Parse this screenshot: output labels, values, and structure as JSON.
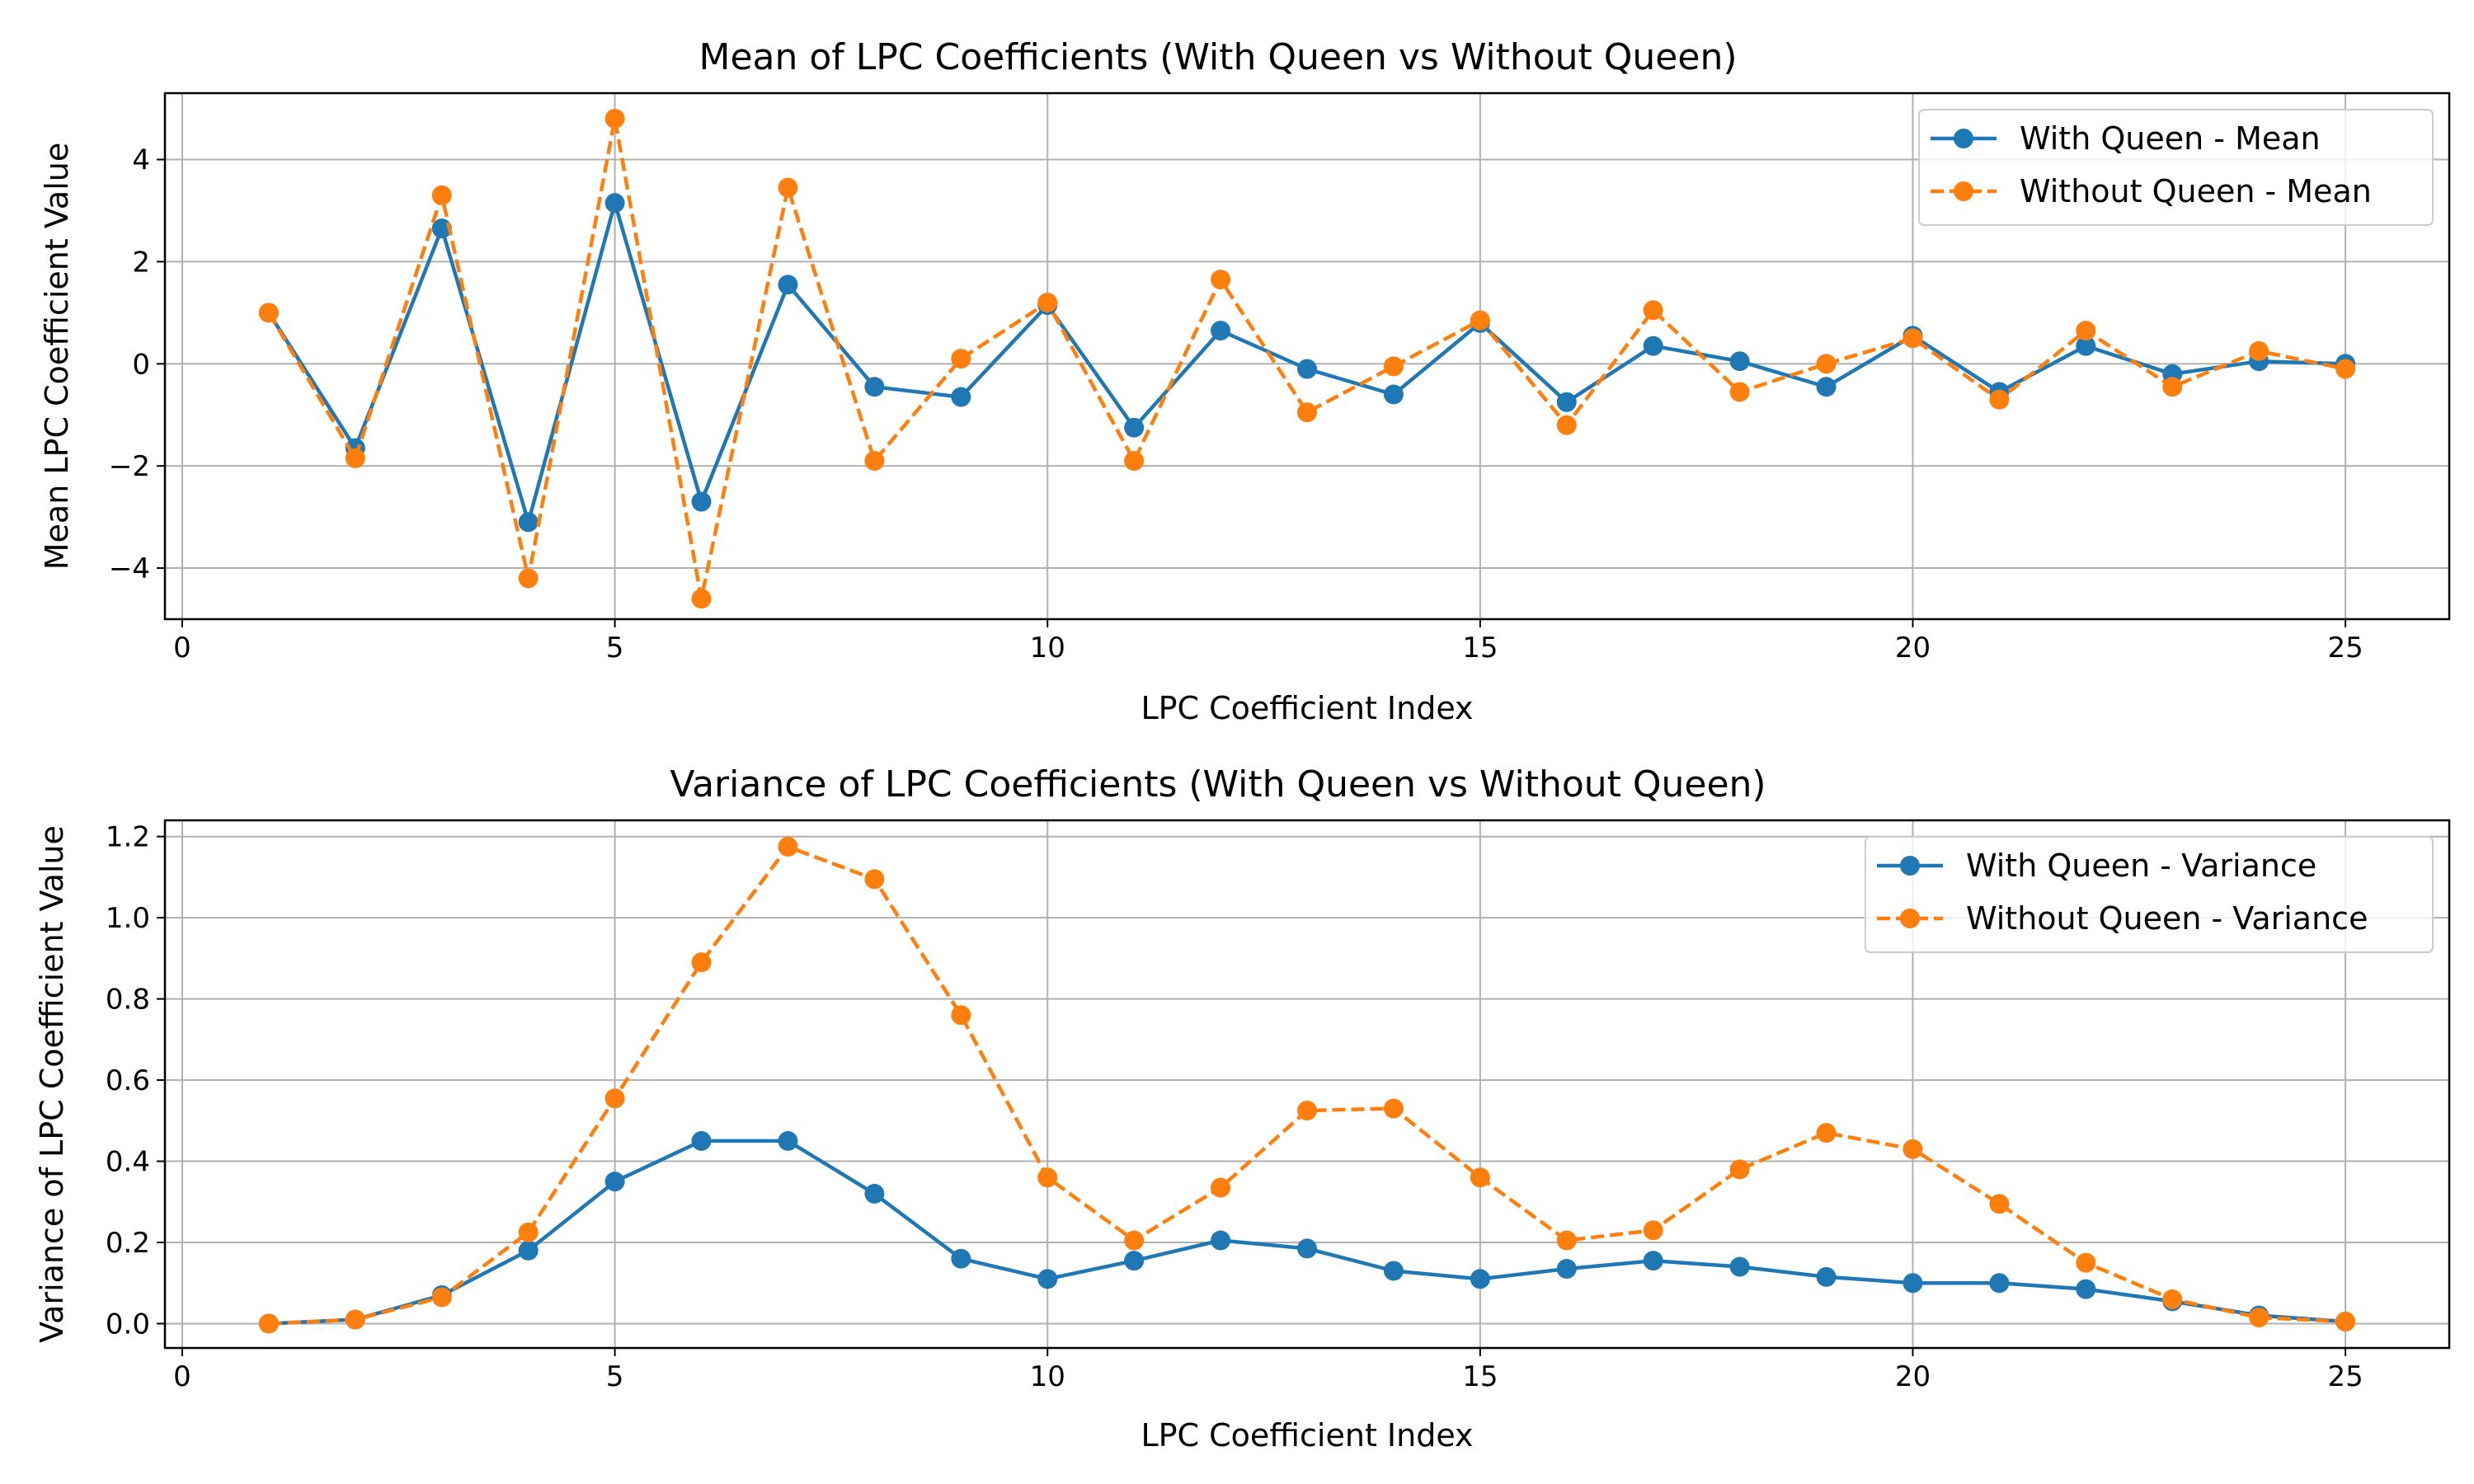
{
  "chart_data": [
    {
      "type": "line",
      "title": "Mean of LPC Coefficients (With Queen vs Without Queen)",
      "xlabel": "LPC Coefficient Index",
      "ylabel": "Mean LPC Coefficient Value",
      "xlim": [
        -0.2,
        26.2
      ],
      "ylim": [
        -5.0,
        5.3
      ],
      "xticks": [
        0,
        5,
        10,
        15,
        20,
        25
      ],
      "yticks": [
        -4,
        -2,
        0,
        2,
        4
      ],
      "ytick_labels": [
        "−4",
        "−2",
        "0",
        "2",
        "4"
      ],
      "grid": true,
      "legend_position": "upper right",
      "x": [
        1,
        2,
        3,
        4,
        5,
        6,
        7,
        8,
        9,
        10,
        11,
        12,
        13,
        14,
        15,
        16,
        17,
        18,
        19,
        20,
        21,
        22,
        23,
        24,
        25
      ],
      "series": [
        {
          "name": "With Queen - Mean",
          "color": "#1f77b4",
          "linestyle": "solid",
          "marker": "circle",
          "values": [
            1.0,
            -1.65,
            2.65,
            -3.1,
            3.15,
            -2.7,
            1.55,
            -0.45,
            -0.65,
            1.15,
            -1.25,
            0.65,
            -0.1,
            -0.6,
            0.8,
            -0.75,
            0.35,
            0.05,
            -0.45,
            0.55,
            -0.55,
            0.35,
            -0.2,
            0.05,
            0.0
          ]
        },
        {
          "name": "Without Queen - Mean",
          "color": "#ff7f0e",
          "linestyle": "dashed",
          "marker": "circle",
          "values": [
            1.0,
            -1.85,
            3.3,
            -4.2,
            4.8,
            -4.6,
            3.45,
            -1.9,
            0.1,
            1.2,
            -1.9,
            1.65,
            -0.95,
            -0.05,
            0.85,
            -1.2,
            1.05,
            -0.55,
            0.0,
            0.5,
            -0.7,
            0.65,
            -0.45,
            0.25,
            -0.1
          ]
        }
      ]
    },
    {
      "type": "line",
      "title": "Variance of LPC Coefficients (With Queen vs Without Queen)",
      "xlabel": "LPC Coefficient Index",
      "ylabel": "Variance of LPC Coefficient Value",
      "xlim": [
        -0.2,
        26.2
      ],
      "ylim": [
        -0.06,
        1.24
      ],
      "xticks": [
        0,
        5,
        10,
        15,
        20,
        25
      ],
      "yticks": [
        0.0,
        0.2,
        0.4,
        0.6,
        0.8,
        1.0,
        1.2
      ],
      "ytick_labels": [
        "0.0",
        "0.2",
        "0.4",
        "0.6",
        "0.8",
        "1.0",
        "1.2"
      ],
      "grid": true,
      "legend_position": "upper right",
      "x": [
        1,
        2,
        3,
        4,
        5,
        6,
        7,
        8,
        9,
        10,
        11,
        12,
        13,
        14,
        15,
        16,
        17,
        18,
        19,
        20,
        21,
        22,
        23,
        24,
        25
      ],
      "series": [
        {
          "name": "With Queen - Variance",
          "color": "#1f77b4",
          "linestyle": "solid",
          "marker": "circle",
          "values": [
            0.0,
            0.01,
            0.07,
            0.18,
            0.35,
            0.45,
            0.45,
            0.32,
            0.16,
            0.11,
            0.155,
            0.205,
            0.185,
            0.13,
            0.11,
            0.135,
            0.155,
            0.14,
            0.115,
            0.1,
            0.1,
            0.085,
            0.055,
            0.02,
            0.005
          ]
        },
        {
          "name": "Without Queen - Variance",
          "color": "#ff7f0e",
          "linestyle": "dashed",
          "marker": "circle",
          "values": [
            0.0,
            0.01,
            0.065,
            0.225,
            0.555,
            0.89,
            1.175,
            1.095,
            0.76,
            0.36,
            0.205,
            0.335,
            0.525,
            0.53,
            0.36,
            0.205,
            0.23,
            0.38,
            0.47,
            0.43,
            0.295,
            0.15,
            0.06,
            0.015,
            0.005
          ]
        }
      ]
    }
  ]
}
